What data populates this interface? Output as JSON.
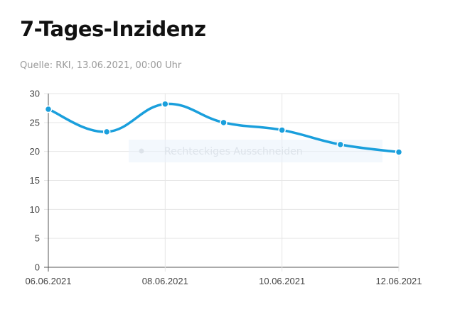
{
  "header": {
    "title": "7-Tages-Inzidenz",
    "source": "Quelle: RKI, 13.06.2021, 00:00 Uhr"
  },
  "overlay": {
    "label": "Rechteckiges Ausschneiden"
  },
  "colors": {
    "line": "#1a9fdc",
    "grid": "#e6e6e6",
    "axis": "#555555"
  },
  "chart_data": {
    "type": "line",
    "title": "7-Tages-Inzidenz",
    "x": [
      "06.06.2021",
      "07.06.2021",
      "08.06.2021",
      "09.06.2021",
      "10.06.2021",
      "11.06.2021",
      "12.06.2021"
    ],
    "x_tick_labels": [
      "06.06.2021",
      "08.06.2021",
      "10.06.2021",
      "12.06.2021"
    ],
    "series": [
      {
        "values": [
          27.3,
          23.4,
          28.2,
          25.0,
          23.7,
          21.2,
          19.9
        ]
      }
    ],
    "ylim": [
      0,
      30
    ],
    "yticks": [
      0,
      5,
      10,
      15,
      20,
      25,
      30
    ],
    "grid": true,
    "legend": "none",
    "curve": "smooth"
  }
}
